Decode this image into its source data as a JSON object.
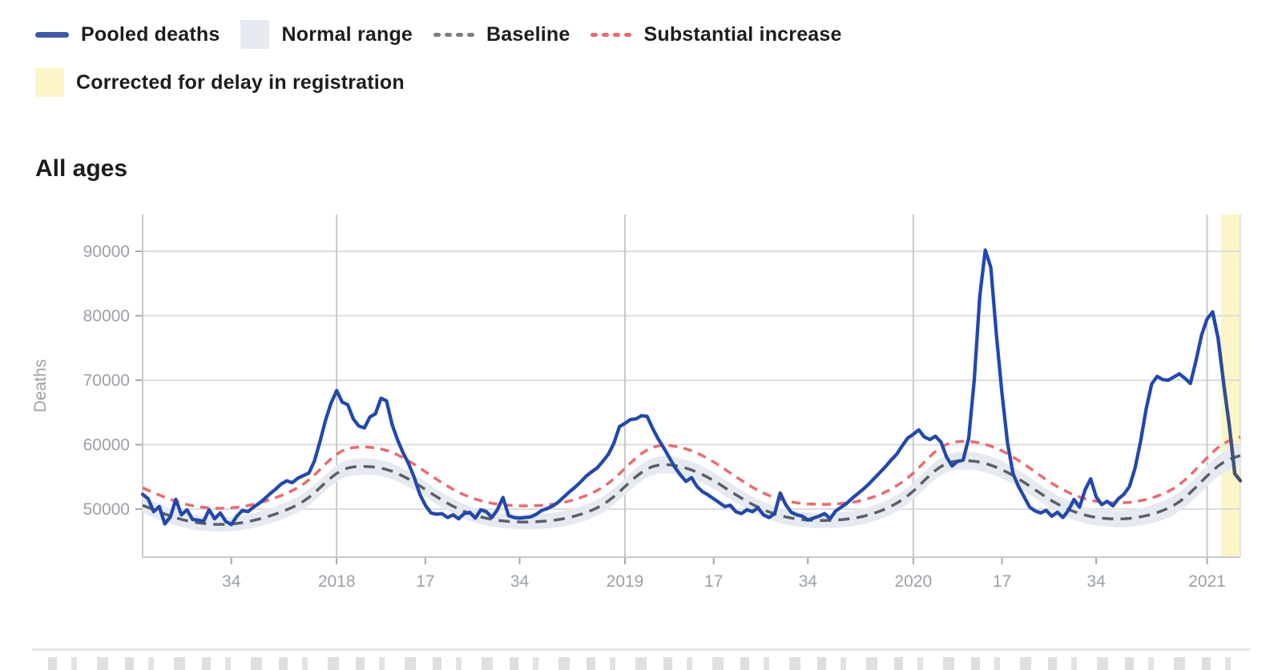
{
  "legend": {
    "pooled": "Pooled deaths",
    "normal_range": "Normal range",
    "baseline": "Baseline",
    "substantial": "Substantial increase",
    "corrected": "Corrected for delay in registration"
  },
  "section": {
    "title": "All ages"
  },
  "colors": {
    "pooled": "#2148ae",
    "pooled_swatch": "#4059ab",
    "pooled_end_fade": "#46566d",
    "baseline": "#5a5e66",
    "baseline_swatch": "#7e7e7e",
    "substantial": "#ee686f",
    "band": "#e5eaf1",
    "corrected": "#fbf5c8",
    "grid": "#dcdcdc",
    "year_grid": "#c9c9c9",
    "axis": "#c9c9c9",
    "tick": "#a8a8a8",
    "tick_text": "#9aa0a6"
  },
  "chart_data": {
    "type": "line",
    "title": "All ages",
    "xlabel": "",
    "ylabel": "Deaths",
    "ylim": [
      42500,
      95700
    ],
    "yticks": [
      50000,
      60000,
      70000,
      80000,
      90000
    ],
    "grid": true,
    "legend_position": "top",
    "x_unit": "ISO week",
    "x_start": "2017-W18",
    "x_end": "2021-W07",
    "xticks": [
      {
        "i": 16,
        "label": "34",
        "grid": false
      },
      {
        "i": 35,
        "label": "2018",
        "grid": true
      },
      {
        "i": 51,
        "label": "17",
        "grid": false
      },
      {
        "i": 68,
        "label": "34",
        "grid": false
      },
      {
        "i": 87,
        "label": "2019",
        "grid": true
      },
      {
        "i": 103,
        "label": "17",
        "grid": false
      },
      {
        "i": 120,
        "label": "34",
        "grid": false
      },
      {
        "i": 139,
        "label": "2020",
        "grid": true
      },
      {
        "i": 155,
        "label": "17",
        "grid": false
      },
      {
        "i": 172,
        "label": "34",
        "grid": false
      },
      {
        "i": 192,
        "label": "2021",
        "grid": true
      }
    ],
    "corrected_zone": {
      "start_idx": 194.5,
      "label": "Corrected for delay in registration"
    },
    "series": [
      {
        "name": "Pooled deaths",
        "style": "solid",
        "values": [
          52300,
          51600,
          49600,
          50400,
          47700,
          48800,
          51500,
          49100,
          49900,
          48400,
          48300,
          48100,
          49900,
          48500,
          49400,
          48100,
          47600,
          48900,
          49800,
          49600,
          50300,
          50900,
          51600,
          52400,
          53100,
          53900,
          54400,
          54100,
          54800,
          55200,
          55600,
          57500,
          60500,
          63800,
          66500,
          68400,
          66600,
          66200,
          64000,
          62900,
          62600,
          64300,
          64800,
          67200,
          66800,
          63100,
          60700,
          58700,
          57000,
          54900,
          52300,
          50600,
          49400,
          49200,
          49300,
          48700,
          49100,
          48500,
          49300,
          49500,
          48600,
          49900,
          49600,
          48700,
          49900,
          51800,
          49000,
          48700,
          48600,
          48700,
          48800,
          49200,
          49800,
          50100,
          50500,
          51100,
          51900,
          52700,
          53400,
          54200,
          55100,
          55800,
          56400,
          57400,
          58500,
          60200,
          62800,
          63300,
          63900,
          64000,
          64500,
          64400,
          62500,
          60900,
          59500,
          58000,
          56500,
          55300,
          54300,
          54900,
          53500,
          52700,
          52200,
          51600,
          51000,
          50400,
          50600,
          49600,
          49300,
          49900,
          49600,
          50200,
          49100,
          48700,
          49300,
          52500,
          50700,
          49500,
          49100,
          48900,
          48300,
          48600,
          48900,
          49300,
          48500,
          49700,
          50300,
          50900,
          51700,
          52400,
          53100,
          53900,
          54800,
          55700,
          56600,
          57600,
          58500,
          59800,
          61000,
          61600,
          62300,
          61200,
          60800,
          61300,
          60400,
          58100,
          56700,
          57400,
          57600,
          61000,
          70000,
          83000,
          90200,
          87500,
          77000,
          68000,
          60300,
          55500,
          53500,
          51900,
          50300,
          49700,
          49400,
          49800,
          48900,
          49500,
          48700,
          49800,
          51500,
          50300,
          53000,
          54700,
          51900,
          50700,
          51200,
          50500,
          51600,
          52300,
          53500,
          56300,
          60500,
          65500,
          69400,
          70600,
          70100,
          70000,
          70500,
          71000,
          70300,
          69500,
          73000,
          77000,
          79500,
          80600,
          76500,
          69500,
          63000,
          55500,
          54400
        ]
      },
      {
        "name": "Baseline",
        "style": "dashed",
        "anchors": [
          [
            0,
            50600
          ],
          [
            4,
            49200
          ],
          [
            8,
            48100
          ],
          [
            13,
            47550
          ],
          [
            18,
            47800
          ],
          [
            23,
            48900
          ],
          [
            27,
            50200
          ],
          [
            30,
            51600
          ],
          [
            33,
            54200
          ],
          [
            36,
            56400
          ],
          [
            39,
            56700
          ],
          [
            43,
            56500
          ],
          [
            46,
            55600
          ],
          [
            49,
            54200
          ],
          [
            53,
            51900
          ],
          [
            57,
            49900
          ],
          [
            61,
            48700
          ],
          [
            65,
            48100
          ],
          [
            70,
            47950
          ],
          [
            75,
            48300
          ],
          [
            79,
            49100
          ],
          [
            83,
            50500
          ],
          [
            86,
            52600
          ],
          [
            89,
            55200
          ],
          [
            92,
            56900
          ],
          [
            95,
            57000
          ],
          [
            99,
            56200
          ],
          [
            103,
            54500
          ],
          [
            107,
            52200
          ],
          [
            111,
            50200
          ],
          [
            115,
            48900
          ],
          [
            119,
            48300
          ],
          [
            124,
            48200
          ],
          [
            129,
            48600
          ],
          [
            133,
            49600
          ],
          [
            136,
            50800
          ],
          [
            139,
            52600
          ],
          [
            142,
            55400
          ],
          [
            145,
            57400
          ],
          [
            149,
            57600
          ],
          [
            152,
            57200
          ],
          [
            156,
            55800
          ],
          [
            160,
            53600
          ],
          [
            164,
            51200
          ],
          [
            168,
            49500
          ],
          [
            172,
            48600
          ],
          [
            177,
            48400
          ],
          [
            181,
            48900
          ],
          [
            185,
            50000
          ],
          [
            188,
            51600
          ],
          [
            191,
            54300
          ],
          [
            194,
            56900
          ],
          [
            196,
            57900
          ],
          [
            198,
            58300
          ]
        ]
      },
      {
        "name": "Substantial increase",
        "style": "dashed",
        "anchors": [
          [
            0,
            53300
          ],
          [
            4,
            51800
          ],
          [
            8,
            50600
          ],
          [
            13,
            50050
          ],
          [
            18,
            50300
          ],
          [
            23,
            51400
          ],
          [
            27,
            52800
          ],
          [
            30,
            54300
          ],
          [
            33,
            57100
          ],
          [
            36,
            59400
          ],
          [
            39,
            59700
          ],
          [
            43,
            59500
          ],
          [
            46,
            58500
          ],
          [
            49,
            57000
          ],
          [
            53,
            54600
          ],
          [
            57,
            52500
          ],
          [
            61,
            51200
          ],
          [
            65,
            50600
          ],
          [
            70,
            50450
          ],
          [
            75,
            50800
          ],
          [
            79,
            51700
          ],
          [
            83,
            53200
          ],
          [
            86,
            55400
          ],
          [
            89,
            58100
          ],
          [
            92,
            59900
          ],
          [
            95,
            60000
          ],
          [
            99,
            59200
          ],
          [
            103,
            57400
          ],
          [
            107,
            55000
          ],
          [
            111,
            52800
          ],
          [
            115,
            51400
          ],
          [
            119,
            50800
          ],
          [
            124,
            50700
          ],
          [
            129,
            51100
          ],
          [
            133,
            52200
          ],
          [
            136,
            53500
          ],
          [
            139,
            55400
          ],
          [
            142,
            58300
          ],
          [
            145,
            60400
          ],
          [
            149,
            60600
          ],
          [
            152,
            60200
          ],
          [
            156,
            58700
          ],
          [
            160,
            56400
          ],
          [
            164,
            53900
          ],
          [
            168,
            52100
          ],
          [
            172,
            51100
          ],
          [
            177,
            50900
          ],
          [
            181,
            51400
          ],
          [
            185,
            52600
          ],
          [
            188,
            54300
          ],
          [
            191,
            57100
          ],
          [
            194,
            59800
          ],
          [
            196,
            60800
          ],
          [
            198,
            61200
          ]
        ]
      },
      {
        "name": "Normal range",
        "style": "band",
        "halfwidth_anchors": [
          [
            0,
            1250
          ],
          [
            13,
            1100
          ],
          [
            37,
            1300
          ],
          [
            65,
            1100
          ],
          [
            93,
            1350
          ],
          [
            122,
            1150
          ],
          [
            149,
            1400
          ],
          [
            175,
            1250
          ],
          [
            192,
            1600
          ],
          [
            198,
            1700
          ]
        ]
      }
    ]
  }
}
